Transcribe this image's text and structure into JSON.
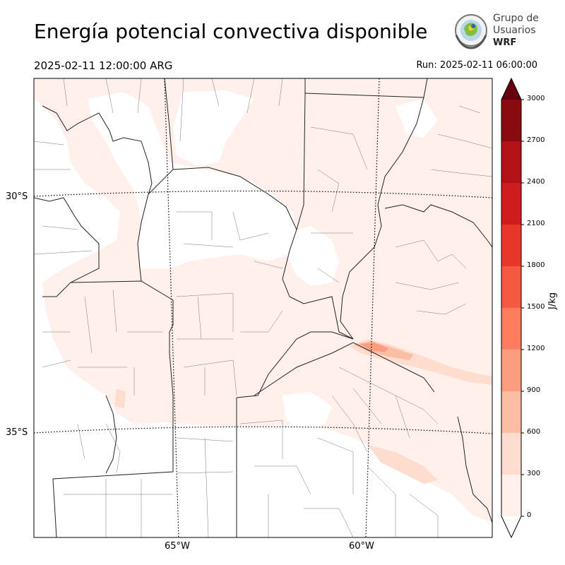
{
  "header": {
    "title": "Energía potencial convectiva disponible",
    "valid_time": "2025-02-11 12:00:00 ARG",
    "run_time": "Run: 2025-02-11 06:00:00"
  },
  "logo": {
    "line1": "Grupo de",
    "line2": "Usuarios",
    "line3": "WRF"
  },
  "map": {
    "variable": "CAPE",
    "lat_labels": [
      "30°S",
      "35°S"
    ],
    "lon_labels": [
      "65°W",
      "60°W"
    ]
  },
  "colorbar": {
    "unit": "J/kg",
    "ticks": [
      "0",
      "300",
      "600",
      "900",
      "1200",
      "1500",
      "1800",
      "2100",
      "2400",
      "2700",
      "3000"
    ],
    "colors": [
      "#fff0eb",
      "#fedcce",
      "#fcbda5",
      "#fc9d7f",
      "#fb7d5d",
      "#f5593f",
      "#e8362a",
      "#cf1c1d",
      "#b11218",
      "#8a0a12"
    ],
    "extend_color": "#67000d"
  }
}
